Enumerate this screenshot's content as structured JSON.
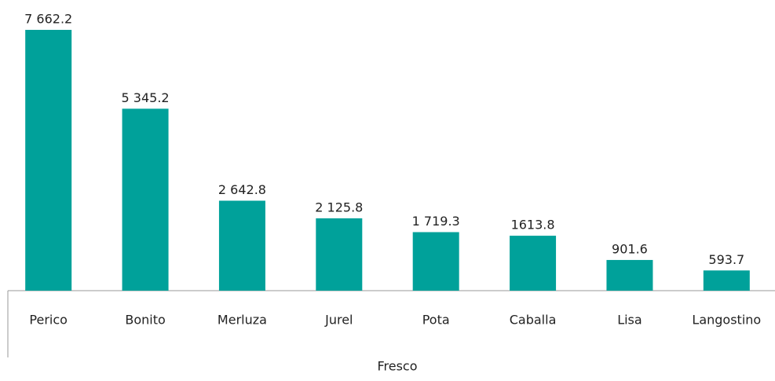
{
  "chart_data": {
    "type": "bar",
    "categories": [
      "Perico",
      "Bonito",
      "Merluza",
      "Jurel",
      "Pota",
      "Caballa",
      "Lisa",
      "Langostino"
    ],
    "values": [
      7662.2,
      5345.2,
      2642.8,
      2125.8,
      1719.3,
      1613.8,
      901.6,
      593.7
    ],
    "value_labels": [
      "7 662.2",
      "5 345.2",
      "2 642.8",
      "2 125.8",
      "1 719.3",
      "1613.8",
      "901.6",
      "593.7"
    ],
    "xlabel": "Fresco",
    "color": "#00a19a"
  }
}
